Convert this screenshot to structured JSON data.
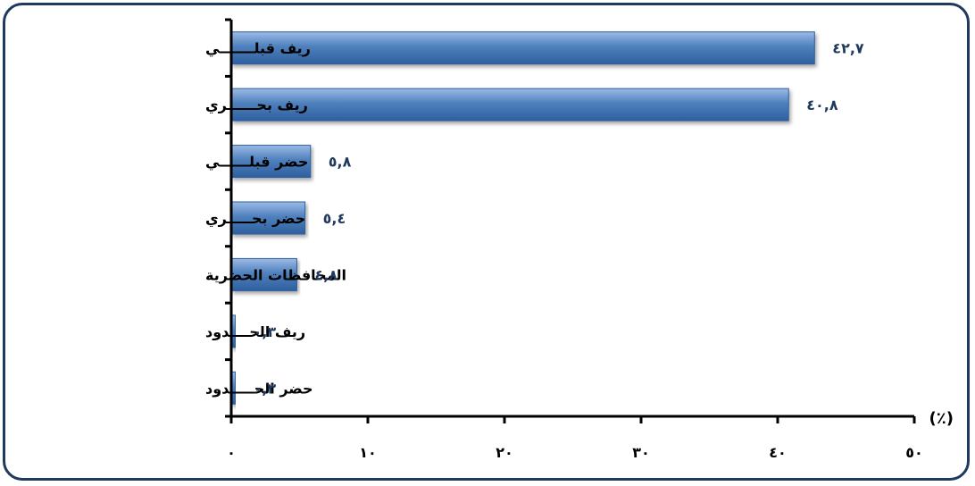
{
  "chart_data": {
    "type": "bar",
    "orientation": "horizontal",
    "categories": [
      "ريف قبلـــــــي",
      "ريف بحــــــري",
      "حضر قبلــــــي",
      "حضر بحـــــري",
      "المحافظات الحضرية",
      "ريف الحــــدود",
      "حضر الحـــــدود"
    ],
    "values": [
      42.7,
      40.8,
      5.8,
      5.4,
      4.8,
      0.3,
      0.3
    ],
    "value_labels": [
      "٤٢,٧",
      "٤٠,٨",
      "٥,٨",
      "٥,٤",
      "٤,٨",
      "٠,٣",
      "٠,٣"
    ],
    "xlim": [
      0,
      50
    ],
    "x_ticks": [
      0,
      10,
      20,
      30,
      40,
      50
    ],
    "x_tick_labels": [
      "٠",
      "١٠",
      "٢٠",
      "٣٠",
      "٤٠",
      "٥٠"
    ],
    "unit_label": "(٪)",
    "grid": false,
    "legend": "none",
    "bar_color": "#4f81bd",
    "bar_color_light": "#9cbbe6",
    "bar_color_dark": "#2e5f9e",
    "axis_color": "#000000",
    "value_color": "#1f3a5c",
    "frame_color": "#1f3a5c"
  }
}
